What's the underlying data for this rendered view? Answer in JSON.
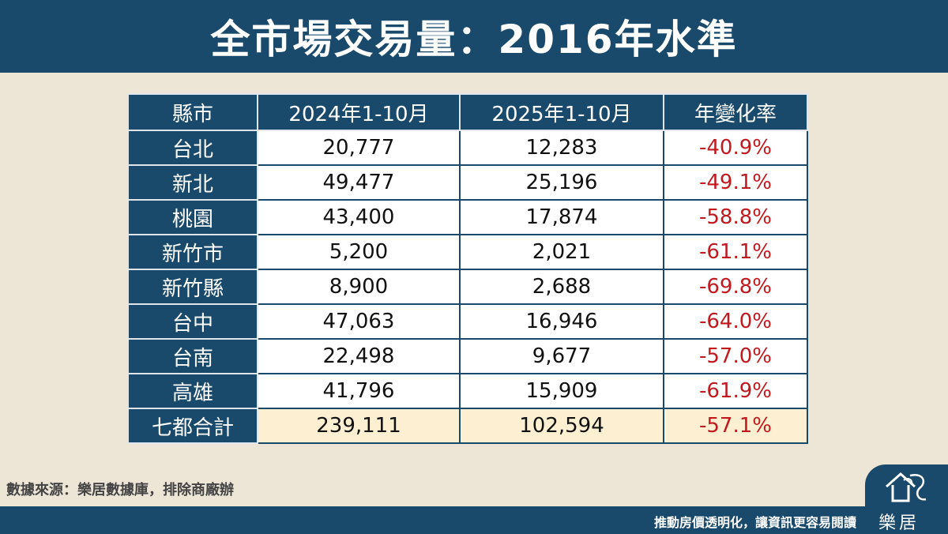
{
  "header": {
    "title": "全市場交易量：2016年水準"
  },
  "chart_data": {
    "type": "table",
    "columns": [
      "縣市",
      "2024年1-10月",
      "2025年1-10月",
      "年變化率"
    ],
    "rows": [
      {
        "city": "台北",
        "v2024": "20,777",
        "v2025": "12,283",
        "change": "-40.9%"
      },
      {
        "city": "新北",
        "v2024": "49,477",
        "v2025": "25,196",
        "change": "-49.1%"
      },
      {
        "city": "桃園",
        "v2024": "43,400",
        "v2025": "17,874",
        "change": "-58.8%"
      },
      {
        "city": "新竹市",
        "v2024": "5,200",
        "v2025": "2,021",
        "change": "-61.1%"
      },
      {
        "city": "新竹縣",
        "v2024": "8,900",
        "v2025": "2,688",
        "change": "-69.8%"
      },
      {
        "city": "台中",
        "v2024": "47,063",
        "v2025": "16,946",
        "change": "-64.0%"
      },
      {
        "city": "台南",
        "v2024": "22,498",
        "v2025": "9,677",
        "change": "-57.0%"
      },
      {
        "city": "高雄",
        "v2024": "41,796",
        "v2025": "15,909",
        "change": "-61.9%"
      }
    ],
    "total": {
      "city": "七都合計",
      "v2024": "239,111",
      "v2025": "102,594",
      "change": "-57.1%"
    }
  },
  "source": "數據來源：樂居數據庫，排除商廠辦",
  "footer": {
    "slogan": "推動房價透明化，讓資訊更容易閱讀"
  },
  "logo": {
    "text": "樂居"
  },
  "colors": {
    "navy": "#1a4a6b",
    "red": "#c0191e",
    "cream": "#fdf0d2",
    "background": "#ede5d6"
  }
}
